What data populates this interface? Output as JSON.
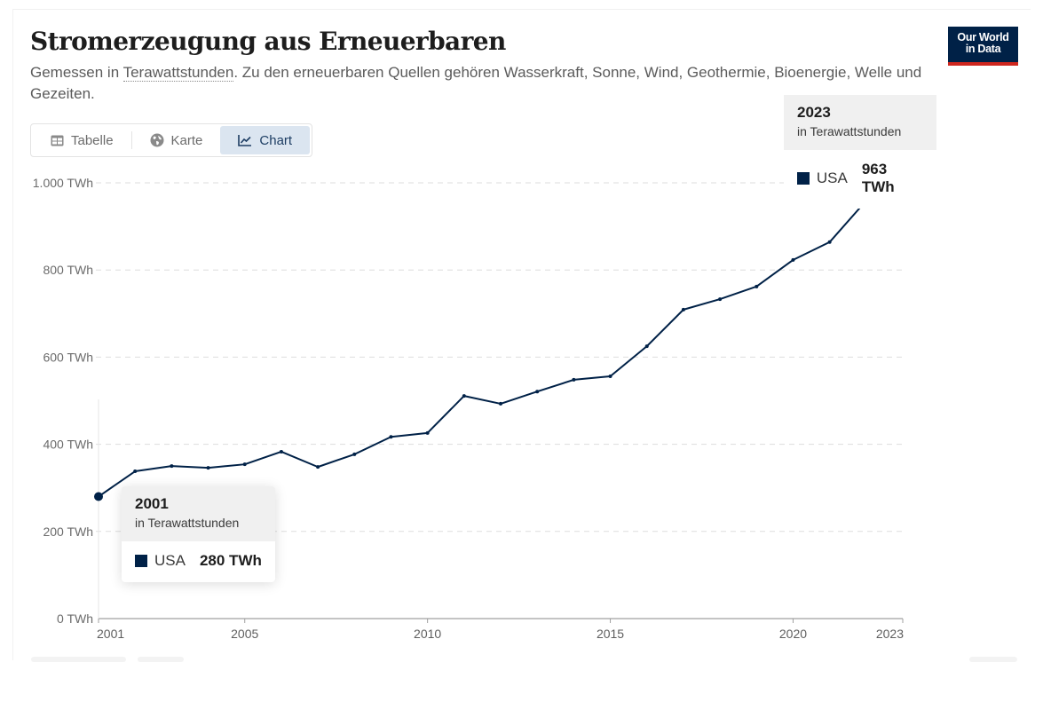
{
  "header": {
    "title": "Stromerzeugung aus Erneuerbaren",
    "subtitle_prefix": "Gemessen in ",
    "subtitle_link": "Terawattstunden",
    "subtitle_rest": ". Zu den erneuerbaren Quellen gehören Wasserkraft, Sonne, Wind, Geothermie, Bioenergie, Welle und Gezeiten.",
    "logo_line1": "Our World",
    "logo_line2": "in Data"
  },
  "tabs": [
    {
      "label": "Tabelle",
      "icon": "table-icon",
      "active": false
    },
    {
      "label": "Karte",
      "icon": "globe-icon",
      "active": false
    },
    {
      "label": "Chart",
      "icon": "line-chart-icon",
      "active": true
    }
  ],
  "tooltips": {
    "end": {
      "year": "2023",
      "unit": "in Terawattstunden",
      "entity": "USA",
      "value": "963 TWh"
    },
    "hover": {
      "year": "2001",
      "unit": "in Terawattstunden",
      "entity": "USA",
      "value": "280 TWh"
    }
  },
  "colors": {
    "series": "#002147",
    "grid": "#dddddd",
    "axis": "#a0a0a0"
  },
  "chart_data": {
    "type": "line",
    "title": "Stromerzeugung aus Erneuerbaren",
    "xlabel": "",
    "ylabel": "",
    "x": [
      2001,
      2002,
      2003,
      2004,
      2005,
      2006,
      2007,
      2008,
      2009,
      2010,
      2011,
      2012,
      2013,
      2014,
      2015,
      2016,
      2017,
      2018,
      2019,
      2020,
      2021,
      2022,
      2023
    ],
    "series": [
      {
        "name": "USA",
        "values": [
          280,
          338,
          350,
          346,
          354,
          383,
          348,
          377,
          417,
          426,
          511,
          493,
          521,
          548,
          556,
          625,
          709,
          733,
          762,
          823,
          864,
          959,
          963
        ]
      }
    ],
    "xlim": [
      2001,
      2023
    ],
    "ylim": [
      0,
      1000
    ],
    "y_ticks": [
      0,
      200,
      400,
      600,
      800,
      1000
    ],
    "y_tick_labels": [
      "0 TWh",
      "200 TWh",
      "400 TWh",
      "600 TWh",
      "800 TWh",
      "1.000 TWh"
    ],
    "x_ticks": [
      2001,
      2005,
      2010,
      2015,
      2020,
      2023
    ],
    "x_tick_labels": [
      "2001",
      "2005",
      "2010",
      "2015",
      "2020",
      "2023"
    ],
    "grid": "horizontal-dashed",
    "highlighted_point": 2001,
    "end_label": "USA"
  }
}
